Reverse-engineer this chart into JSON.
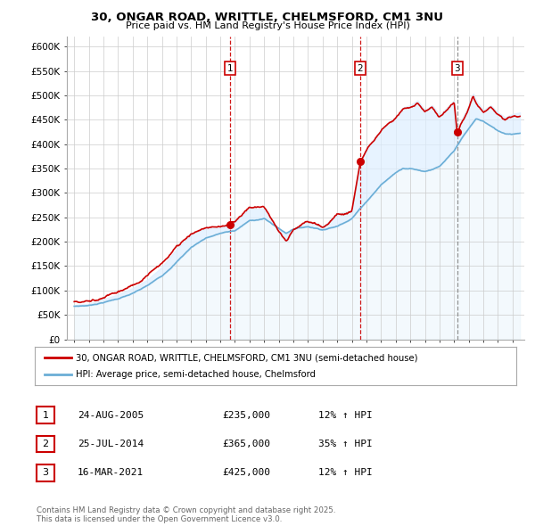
{
  "title": "30, ONGAR ROAD, WRITTLE, CHELMSFORD, CM1 3NU",
  "subtitle": "Price paid vs. HM Land Registry's House Price Index (HPI)",
  "ylim": [
    0,
    620000
  ],
  "yticks": [
    0,
    50000,
    100000,
    150000,
    200000,
    250000,
    300000,
    350000,
    400000,
    450000,
    500000,
    550000,
    600000
  ],
  "ytick_labels": [
    "£0",
    "£50K",
    "£100K",
    "£150K",
    "£200K",
    "£250K",
    "£300K",
    "£350K",
    "£400K",
    "£450K",
    "£500K",
    "£550K",
    "£600K"
  ],
  "hpi_color": "#6baed6",
  "price_color": "#cc0000",
  "fill_color": "#ddeeff",
  "vline_color_red": "#cc0000",
  "vline_color_gray": "#888888",
  "transactions": [
    {
      "num": 1,
      "date": "24-AUG-2005",
      "price": 235000,
      "pct": "12%",
      "x": 2005.65,
      "vline": "red"
    },
    {
      "num": 2,
      "date": "25-JUL-2014",
      "price": 365000,
      "pct": "35%",
      "x": 2014.56,
      "vline": "red"
    },
    {
      "num": 3,
      "date": "16-MAR-2021",
      "price": 425000,
      "pct": "12%",
      "x": 2021.21,
      "vline": "gray"
    }
  ],
  "legend_label_price": "30, ONGAR ROAD, WRITTLE, CHELMSFORD, CM1 3NU (semi-detached house)",
  "legend_label_hpi": "HPI: Average price, semi-detached house, Chelmsford",
  "footer": "Contains HM Land Registry data © Crown copyright and database right 2025.\nThis data is licensed under the Open Government Licence v3.0.",
  "background_color": "#ffffff",
  "grid_color": "#cccccc",
  "xlim_left": 1994.5,
  "xlim_right": 2025.8
}
